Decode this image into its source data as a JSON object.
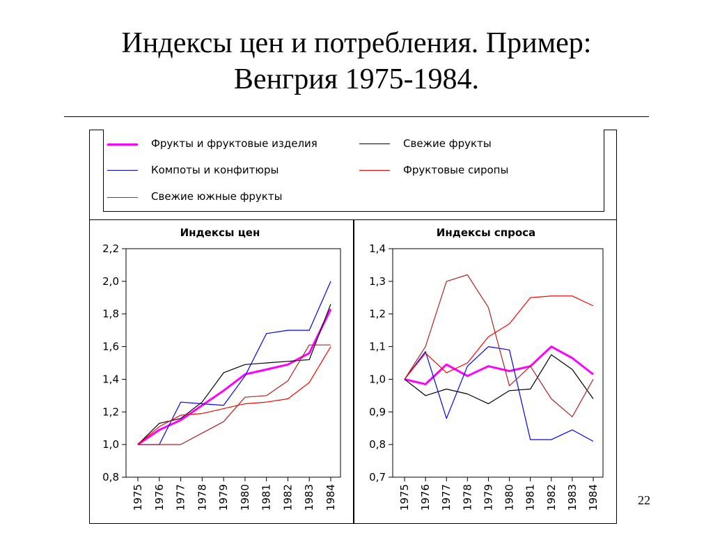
{
  "slide": {
    "title_line1": "Индексы цен и потребления. Пример:",
    "title_line2": "Венгрия 1975-1984.",
    "page_number": "22"
  },
  "legend": [
    {
      "label": "Фрукты и фруктовые изделия",
      "color": "#ff00ff",
      "thick": true
    },
    {
      "label": "Свежие фрукты",
      "color": "#000000",
      "thick": false
    },
    {
      "label": "Компоты и конфитюры",
      "color": "#0000ff",
      "thick": false
    },
    {
      "label": "Фруктовые сиропы",
      "color": "#ff0000",
      "thick": false
    },
    {
      "label": "Свежие южные фрукты",
      "color": "#b22222",
      "thick": false
    }
  ],
  "chart_data": [
    {
      "type": "line",
      "title": "Индексы цен",
      "x": [
        "1975",
        "1976",
        "1977",
        "1978",
        "1979",
        "1980",
        "1981",
        "1982",
        "1983",
        "1984"
      ],
      "ylim": [
        0.8,
        2.2
      ],
      "yticks": [
        "0,8",
        "1,0",
        "1,2",
        "1,4",
        "1,6",
        "1,8",
        "2,0",
        "2,2"
      ],
      "series": [
        {
          "name": "Фрукты и фруктовые изделия",
          "color": "#ff00ff",
          "values": [
            1.0,
            1.09,
            1.15,
            1.24,
            1.33,
            1.43,
            1.46,
            1.49,
            1.56,
            1.83
          ]
        },
        {
          "name": "Свежие фрукты",
          "color": "#000000",
          "values": [
            1.0,
            1.13,
            1.16,
            1.26,
            1.44,
            1.49,
            1.5,
            1.51,
            1.52,
            1.86
          ]
        },
        {
          "name": "Компоты и конфитюры",
          "color": "#0000ff",
          "values": [
            1.0,
            1.0,
            1.26,
            1.25,
            1.24,
            1.42,
            1.68,
            1.7,
            1.7,
            2.0
          ]
        },
        {
          "name": "Фруктовые сиропы",
          "color": "#ff0000",
          "values": [
            1.0,
            1.11,
            1.18,
            1.19,
            1.22,
            1.25,
            1.26,
            1.28,
            1.38,
            1.6
          ]
        },
        {
          "name": "Свежие южные фрукты",
          "color": "#b22222",
          "values": [
            1.0,
            1.0,
            1.0,
            1.07,
            1.14,
            1.29,
            1.3,
            1.39,
            1.61,
            1.61
          ]
        }
      ]
    },
    {
      "type": "line",
      "title": "Индексы спроса",
      "x": [
        "1975",
        "1976",
        "1977",
        "1978",
        "1979",
        "1980",
        "1981",
        "1982",
        "1983",
        "1984"
      ],
      "ylim": [
        0.7,
        1.4
      ],
      "yticks": [
        "0,7",
        "0,8",
        "0,9",
        "1,0",
        "1,1",
        "1,2",
        "1,3",
        "1,4"
      ],
      "series": [
        {
          "name": "Фрукты и фруктовые изделия",
          "color": "#ff00ff",
          "values": [
            1.0,
            0.985,
            1.045,
            1.01,
            1.04,
            1.025,
            1.04,
            1.1,
            1.065,
            1.015
          ]
        },
        {
          "name": "Свежие фрукты",
          "color": "#000000",
          "values": [
            1.0,
            0.95,
            0.97,
            0.955,
            0.925,
            0.965,
            0.97,
            1.075,
            1.03,
            0.94
          ]
        },
        {
          "name": "Компоты и конфитюры",
          "color": "#0000ff",
          "values": [
            1.0,
            1.085,
            0.88,
            1.04,
            1.1,
            1.09,
            0.815,
            0.815,
            0.845,
            0.81
          ]
        },
        {
          "name": "Фруктовые сиропы",
          "color": "#ff0000",
          "values": [
            1.0,
            1.08,
            1.02,
            1.05,
            1.13,
            1.17,
            1.25,
            1.255,
            1.255,
            1.225
          ]
        },
        {
          "name": "Свежие южные фрукты",
          "color": "#b22222",
          "values": [
            1.0,
            1.1,
            1.3,
            1.32,
            1.22,
            0.98,
            1.04,
            0.94,
            0.885,
            1.0
          ]
        }
      ]
    }
  ]
}
